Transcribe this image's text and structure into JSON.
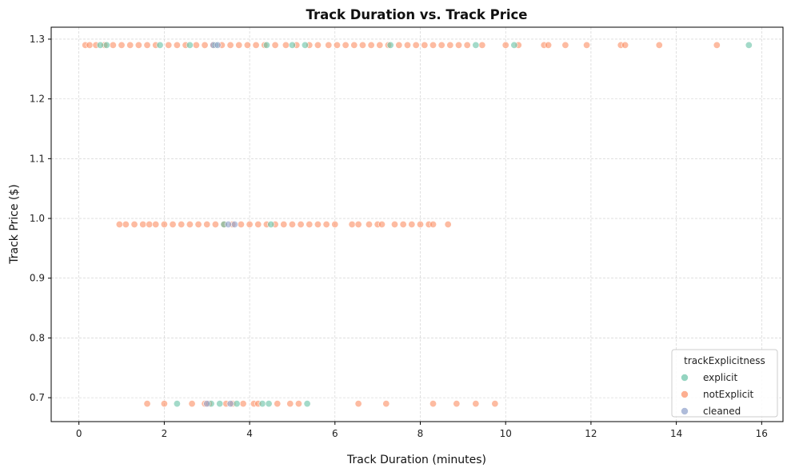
{
  "chart_data": {
    "type": "scatter",
    "title": "Track Duration vs. Track Price",
    "xlabel": "Track Duration (minutes)",
    "ylabel": "Track Price ($)",
    "xlim": [
      -0.65,
      16.5
    ],
    "ylim": [
      0.66,
      1.32
    ],
    "xticks": [
      0,
      2,
      4,
      6,
      8,
      10,
      12,
      14,
      16
    ],
    "yticks": [
      0.7,
      0.8,
      0.9,
      1.0,
      1.1,
      1.2,
      1.3
    ],
    "xtick_labels": [
      "0",
      "2",
      "4",
      "6",
      "8",
      "10",
      "12",
      "14",
      "16"
    ],
    "ytick_labels": [
      "0.7",
      "0.8",
      "0.9",
      "1.0",
      "1.1",
      "1.2",
      "1.3"
    ],
    "grid": true,
    "legend": {
      "title": "trackExplicitness",
      "placement": "bottom-right"
    },
    "series": [
      {
        "name": "explicit",
        "color": "#66c2a5",
        "points": [
          [
            0.5,
            1.29
          ],
          [
            0.65,
            1.29
          ],
          [
            1.9,
            1.29
          ],
          [
            2.6,
            1.29
          ],
          [
            3.2,
            1.29
          ],
          [
            4.4,
            1.29
          ],
          [
            5.0,
            1.29
          ],
          [
            5.3,
            1.29
          ],
          [
            7.3,
            1.29
          ],
          [
            9.3,
            1.29
          ],
          [
            10.2,
            1.29
          ],
          [
            15.7,
            1.29
          ],
          [
            4.5,
            0.99
          ],
          [
            3.4,
            0.99
          ],
          [
            2.3,
            0.69
          ],
          [
            3.1,
            0.69
          ],
          [
            3.3,
            0.69
          ],
          [
            3.7,
            0.69
          ],
          [
            4.3,
            0.69
          ],
          [
            4.45,
            0.69
          ],
          [
            5.35,
            0.69
          ]
        ]
      },
      {
        "name": "notExplicit",
        "color": "#fc8d62",
        "points": [
          [
            0.15,
            1.29
          ],
          [
            0.25,
            1.29
          ],
          [
            0.4,
            1.29
          ],
          [
            0.6,
            1.29
          ],
          [
            0.8,
            1.29
          ],
          [
            1.0,
            1.29
          ],
          [
            1.2,
            1.29
          ],
          [
            1.4,
            1.29
          ],
          [
            1.6,
            1.29
          ],
          [
            1.8,
            1.29
          ],
          [
            2.1,
            1.29
          ],
          [
            2.3,
            1.29
          ],
          [
            2.5,
            1.29
          ],
          [
            2.75,
            1.29
          ],
          [
            2.95,
            1.29
          ],
          [
            3.15,
            1.29
          ],
          [
            3.35,
            1.29
          ],
          [
            3.55,
            1.29
          ],
          [
            3.75,
            1.29
          ],
          [
            3.95,
            1.29
          ],
          [
            4.15,
            1.29
          ],
          [
            4.35,
            1.29
          ],
          [
            4.6,
            1.29
          ],
          [
            4.85,
            1.29
          ],
          [
            5.1,
            1.29
          ],
          [
            5.4,
            1.29
          ],
          [
            5.6,
            1.29
          ],
          [
            5.85,
            1.29
          ],
          [
            6.05,
            1.29
          ],
          [
            6.25,
            1.29
          ],
          [
            6.45,
            1.29
          ],
          [
            6.65,
            1.29
          ],
          [
            6.85,
            1.29
          ],
          [
            7.05,
            1.29
          ],
          [
            7.25,
            1.29
          ],
          [
            7.5,
            1.29
          ],
          [
            7.7,
            1.29
          ],
          [
            7.9,
            1.29
          ],
          [
            8.1,
            1.29
          ],
          [
            8.3,
            1.29
          ],
          [
            8.5,
            1.29
          ],
          [
            8.7,
            1.29
          ],
          [
            8.9,
            1.29
          ],
          [
            9.1,
            1.29
          ],
          [
            9.45,
            1.29
          ],
          [
            10.0,
            1.29
          ],
          [
            10.3,
            1.29
          ],
          [
            10.9,
            1.29
          ],
          [
            11.0,
            1.29
          ],
          [
            11.4,
            1.29
          ],
          [
            11.9,
            1.29
          ],
          [
            12.7,
            1.29
          ],
          [
            12.8,
            1.29
          ],
          [
            13.6,
            1.29
          ],
          [
            14.95,
            1.29
          ],
          [
            0.95,
            0.99
          ],
          [
            1.1,
            0.99
          ],
          [
            1.3,
            0.99
          ],
          [
            1.5,
            0.99
          ],
          [
            1.65,
            0.99
          ],
          [
            1.8,
            0.99
          ],
          [
            2.0,
            0.99
          ],
          [
            2.2,
            0.99
          ],
          [
            2.4,
            0.99
          ],
          [
            2.6,
            0.99
          ],
          [
            2.8,
            0.99
          ],
          [
            3.0,
            0.99
          ],
          [
            3.2,
            0.99
          ],
          [
            3.4,
            0.99
          ],
          [
            3.6,
            0.99
          ],
          [
            3.8,
            0.99
          ],
          [
            4.0,
            0.99
          ],
          [
            4.2,
            0.99
          ],
          [
            4.4,
            0.99
          ],
          [
            4.6,
            0.99
          ],
          [
            4.8,
            0.99
          ],
          [
            5.0,
            0.99
          ],
          [
            5.2,
            0.99
          ],
          [
            5.4,
            0.99
          ],
          [
            5.6,
            0.99
          ],
          [
            5.8,
            0.99
          ],
          [
            6.0,
            0.99
          ],
          [
            6.4,
            0.99
          ],
          [
            6.55,
            0.99
          ],
          [
            6.8,
            0.99
          ],
          [
            7.0,
            0.99
          ],
          [
            7.1,
            0.99
          ],
          [
            7.4,
            0.99
          ],
          [
            7.6,
            0.99
          ],
          [
            7.8,
            0.99
          ],
          [
            8.0,
            0.99
          ],
          [
            8.2,
            0.99
          ],
          [
            8.3,
            0.99
          ],
          [
            8.65,
            0.99
          ],
          [
            1.6,
            0.69
          ],
          [
            2.0,
            0.69
          ],
          [
            2.65,
            0.69
          ],
          [
            2.95,
            0.69
          ],
          [
            3.05,
            0.69
          ],
          [
            3.45,
            0.69
          ],
          [
            3.6,
            0.69
          ],
          [
            3.85,
            0.69
          ],
          [
            4.1,
            0.69
          ],
          [
            4.2,
            0.69
          ],
          [
            4.65,
            0.69
          ],
          [
            4.95,
            0.69
          ],
          [
            5.15,
            0.69
          ],
          [
            6.55,
            0.69
          ],
          [
            7.2,
            0.69
          ],
          [
            8.3,
            0.69
          ],
          [
            8.85,
            0.69
          ],
          [
            9.3,
            0.69
          ],
          [
            9.75,
            0.69
          ]
        ]
      },
      {
        "name": "cleaned",
        "color": "#8da0cb",
        "points": [
          [
            3.15,
            1.29
          ],
          [
            3.25,
            1.29
          ],
          [
            3.65,
            0.99
          ],
          [
            3.5,
            0.99
          ],
          [
            3.0,
            0.69
          ],
          [
            3.55,
            0.69
          ]
        ]
      }
    ]
  }
}
